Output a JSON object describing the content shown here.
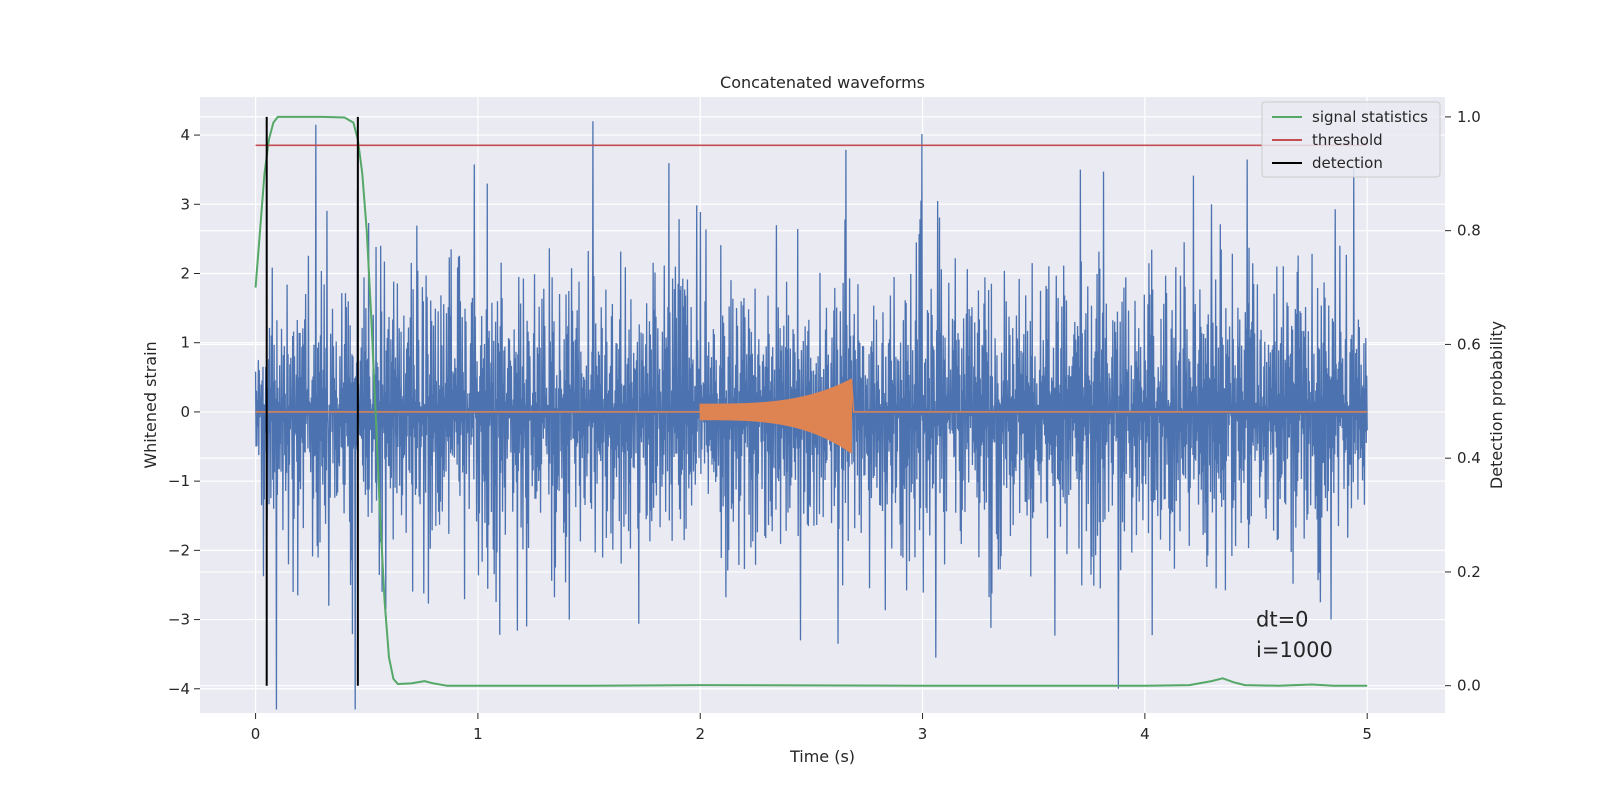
{
  "chart_data": {
    "type": "line",
    "title": "Concatenated waveforms",
    "xlabel": "Time (s)",
    "ylabel": "Whitened strain",
    "ylabel_right": "Detection probability",
    "xlim": [
      -0.25,
      5.35
    ],
    "ylim": [
      -4.35,
      4.55
    ],
    "ylim_right": [
      -0.048,
      1.035
    ],
    "x_ticks": [
      0,
      1,
      2,
      3,
      4,
      5
    ],
    "y_ticks": [
      -4,
      -3,
      -2,
      -1,
      0,
      1,
      2,
      3,
      4
    ],
    "y_ticks_right": [
      0.0,
      0.2,
      0.4,
      0.6,
      0.8,
      1.0
    ],
    "x_tick_labels": [
      "0",
      "1",
      "2",
      "3",
      "4",
      "5"
    ],
    "y_tick_labels": [
      "−4",
      "−3",
      "−2",
      "−1",
      "0",
      "1",
      "2",
      "3",
      "4"
    ],
    "y_tick_labels_right": [
      "0.0",
      "0.2",
      "0.4",
      "0.6",
      "0.8",
      "1.0"
    ],
    "grid": true,
    "legend_position": "top-right",
    "colors": {
      "strain": "#4c72b0",
      "injection": "#dd8452",
      "signal_statistics": "#55a868",
      "threshold": "#c44e52",
      "detection": "#000000",
      "plot_bg": "#eaeaf2",
      "grid": "#ffffff"
    },
    "series": [
      {
        "name": "",
        "axis": "left",
        "kind": "noise",
        "x_range": [
          0,
          5
        ],
        "amplitude_typical": 1.0,
        "spikes": [
          {
            "x": 0.27,
            "y": 4.15
          },
          {
            "x": 3.71,
            "y": 3.5
          },
          {
            "x": 4.94,
            "y": 3.55
          },
          {
            "x": 4.3,
            "y": 3.0
          },
          {
            "x": 3.88,
            "y": -4.0
          },
          {
            "x": 2.45,
            "y": -3.3
          },
          {
            "x": 2.62,
            "y": -3.35
          },
          {
            "x": 3.06,
            "y": -3.55
          },
          {
            "x": 1.22,
            "y": -3.1
          },
          {
            "x": 0.33,
            "y": -2.8
          },
          {
            "x": 0.19,
            "y": -2.65
          },
          {
            "x": 0.57,
            "y": -2.6
          },
          {
            "x": 3.8,
            "y": -2.55
          },
          {
            "x": 4.79,
            "y": -2.75
          }
        ]
      },
      {
        "name": "",
        "axis": "left",
        "kind": "chirp",
        "start": 2.0,
        "end": 2.68,
        "amp_start": 0.12,
        "amp_peak": 0.48,
        "amp_peak_neg": -0.6
      },
      {
        "name": "signal statistics",
        "axis": "right",
        "points": [
          [
            0.0,
            0.7
          ],
          [
            0.02,
            0.8
          ],
          [
            0.04,
            0.9
          ],
          [
            0.06,
            0.96
          ],
          [
            0.08,
            0.99
          ],
          [
            0.1,
            1.0
          ],
          [
            0.3,
            1.0
          ],
          [
            0.4,
            0.999
          ],
          [
            0.44,
            0.99
          ],
          [
            0.46,
            0.96
          ],
          [
            0.48,
            0.9
          ],
          [
            0.5,
            0.8
          ],
          [
            0.52,
            0.65
          ],
          [
            0.54,
            0.48
          ],
          [
            0.56,
            0.3
          ],
          [
            0.58,
            0.15
          ],
          [
            0.6,
            0.05
          ],
          [
            0.62,
            0.012
          ],
          [
            0.64,
            0.003
          ],
          [
            0.7,
            0.004
          ],
          [
            0.76,
            0.008
          ],
          [
            0.8,
            0.004
          ],
          [
            0.86,
            0.0
          ],
          [
            1.5,
            0.0
          ],
          [
            2.0,
            0.001
          ],
          [
            3.0,
            0.0
          ],
          [
            4.0,
            0.0
          ],
          [
            4.2,
            0.001
          ],
          [
            4.3,
            0.008
          ],
          [
            4.35,
            0.013
          ],
          [
            4.4,
            0.006
          ],
          [
            4.45,
            0.001
          ],
          [
            4.6,
            0.0
          ],
          [
            4.75,
            0.002
          ],
          [
            4.85,
            0.0
          ],
          [
            5.0,
            0.0
          ]
        ]
      },
      {
        "name": "threshold",
        "axis": "right",
        "x": [
          0,
          5
        ],
        "values": [
          0.95,
          0.95
        ]
      },
      {
        "name": "detection",
        "axis": "right",
        "lines": [
          {
            "x": 0.05,
            "y": [
              0.0,
              1.0
            ]
          },
          {
            "x": 0.46,
            "y": [
              0.0,
              1.0
            ]
          }
        ]
      }
    ],
    "annotations": [
      {
        "text": "dt=0",
        "x": 4.5,
        "y": -3.0
      },
      {
        "text": "i=1000",
        "x": 4.5,
        "y": -3.4
      }
    ]
  }
}
